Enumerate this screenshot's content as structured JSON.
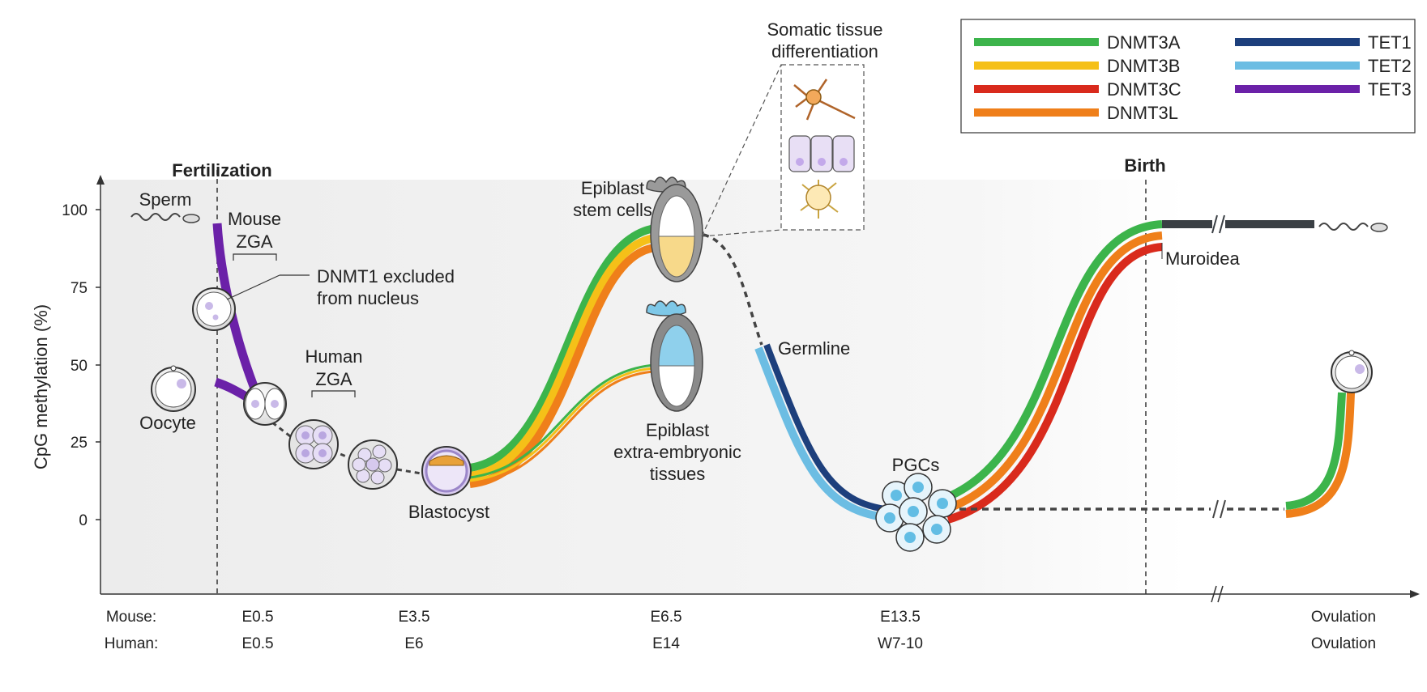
{
  "chart_data": {
    "type": "line",
    "ylabel": "CpG methylation (%)",
    "yticks": [
      "100",
      "75",
      "50",
      "25",
      "0"
    ],
    "ylim": [
      -25,
      110
    ],
    "x_rows": [
      {
        "label": "Mouse:",
        "ticks": [
          "E0.5",
          "E3.5",
          "E6.5",
          "E13.5",
          "Ovulation"
        ]
      },
      {
        "label": "Human:",
        "ticks": [
          "E0.5",
          "E6",
          "E14",
          "W7-10",
          "Ovulation"
        ]
      }
    ],
    "legend": [
      {
        "name": "DNMT3A",
        "color": "#3cb44b"
      },
      {
        "name": "DNMT3B",
        "color": "#f5c018"
      },
      {
        "name": "DNMT3C",
        "color": "#d92a1c"
      },
      {
        "name": "DNMT3L",
        "color": "#ef7f1a"
      },
      {
        "name": "TET1",
        "color": "#1d3f7c"
      },
      {
        "name": "TET2",
        "color": "#6cbde3"
      },
      {
        "name": "TET3",
        "color": "#6b21a8"
      }
    ],
    "legend_position": "top-right",
    "grid": false
  },
  "annotations": {
    "fertilization": "Fertilization",
    "birth": "Birth",
    "sperm": "Sperm",
    "mouse_zga": [
      "Mouse",
      "ZGA"
    ],
    "human_zga": [
      "Human",
      "ZGA"
    ],
    "dnmt1": [
      "DNMT1 excluded",
      "from nucleus"
    ],
    "oocyte": "Oocyte",
    "blastocyst": "Blastocyst",
    "epiblast_stem": [
      "Epiblast",
      "stem cells"
    ],
    "epiblast_extra": [
      "Epiblast",
      "extra-embryonic",
      "tissues"
    ],
    "somatic": [
      "Somatic tissue",
      "differentiation"
    ],
    "germline": "Germline",
    "pgcs": "PGCs",
    "muroidea": "Muroidea"
  }
}
